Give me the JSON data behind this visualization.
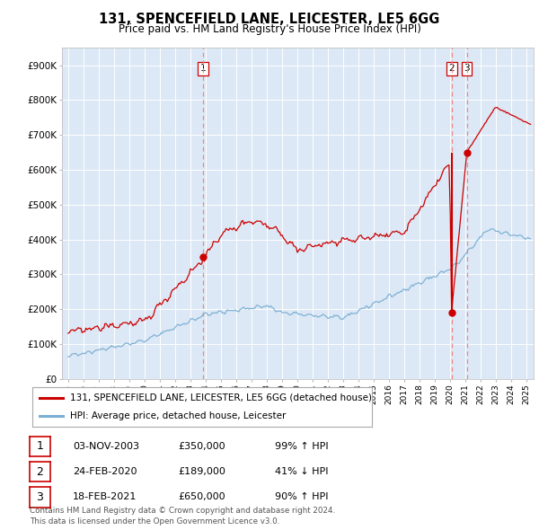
{
  "title": "131, SPENCEFIELD LANE, LEICESTER, LE5 6GG",
  "subtitle": "Price paid vs. HM Land Registry's House Price Index (HPI)",
  "ylim": [
    0,
    950000
  ],
  "ytick_labels": [
    "£0",
    "£100K",
    "£200K",
    "£300K",
    "£400K",
    "£500K",
    "£600K",
    "£700K",
    "£800K",
    "£900K"
  ],
  "ytick_values": [
    0,
    100000,
    200000,
    300000,
    400000,
    500000,
    600000,
    700000,
    800000,
    900000
  ],
  "xlim_start": 1994.6,
  "xlim_end": 2025.5,
  "plot_bg_color": "#dce8f5",
  "fig_bg_color": "#ffffff",
  "grid_color": "#ffffff",
  "red_line_color": "#cc0000",
  "blue_line_color": "#7bafd4",
  "dashed_line_color": "#ee8888",
  "solid_vline_color": "#cc0000",
  "legend_label_red": "131, SPENCEFIELD LANE, LEICESTER, LE5 6GG (detached house)",
  "legend_label_blue": "HPI: Average price, detached house, Leicester",
  "footer_text": "Contains HM Land Registry data © Crown copyright and database right 2024.\nThis data is licensed under the Open Government Licence v3.0.",
  "transactions": [
    {
      "num": 1,
      "year": 2003.84,
      "price": 350000,
      "date": "03-NOV-2003",
      "price_str": "£350,000",
      "hpi_str": "99% ↑ HPI"
    },
    {
      "num": 2,
      "year": 2020.12,
      "price": 189000,
      "date": "24-FEB-2020",
      "price_str": "£189,000",
      "hpi_str": "41% ↓ HPI"
    },
    {
      "num": 3,
      "year": 2021.12,
      "price": 650000,
      "date": "18-FEB-2021",
      "price_str": "£650,000",
      "hpi_str": "90% ↑ HPI"
    }
  ]
}
